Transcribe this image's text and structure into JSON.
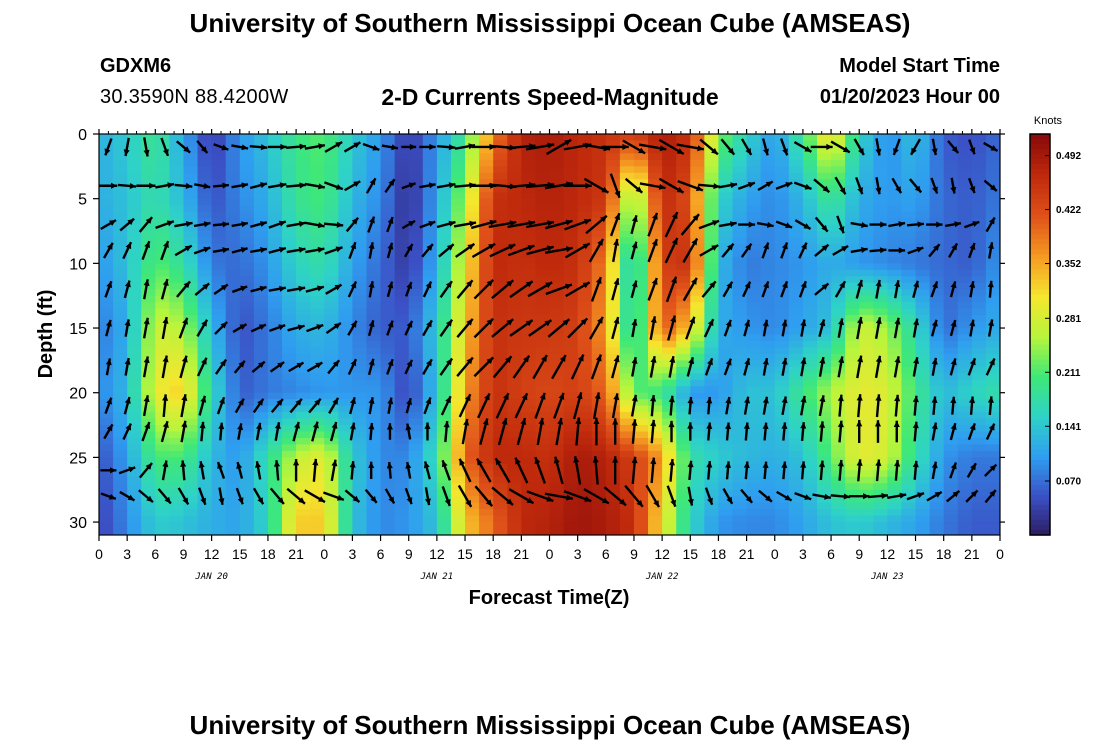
{
  "header": {
    "title": "University of Southern Mississippi Ocean Cube (AMSEAS)",
    "station": "GDXM6",
    "coords": "30.3590N  88.4200W",
    "subtitle": "2-D Currents Speed-Magnitude",
    "model_start_label": "Model Start Time",
    "model_start_value": "01/20/2023 Hour 00",
    "footer_title": "University of Southern Mississippi Ocean Cube (AMSEAS)"
  },
  "chart_data": {
    "type": "heatmap",
    "title": "2-D Currents Speed-Magnitude",
    "xlabel": "Forecast Time(Z)",
    "ylabel": "Depth (ft)",
    "x_tick_labels": [
      "0",
      "3",
      "6",
      "9",
      "12",
      "15",
      "18",
      "21",
      "0",
      "3",
      "6",
      "9",
      "12",
      "15",
      "18",
      "21",
      "0",
      "3",
      "6",
      "9",
      "12",
      "15",
      "18",
      "21",
      "0",
      "3",
      "6",
      "9",
      "12",
      "15",
      "18",
      "21",
      "0"
    ],
    "date_labels": [
      {
        "label": "JAN 20",
        "x_index": 4
      },
      {
        "label": "JAN 21",
        "x_index": 12
      },
      {
        "label": "JAN 22",
        "x_index": 20
      },
      {
        "label": "JAN 23",
        "x_index": 28
      }
    ],
    "y_ticks": [
      0,
      5,
      10,
      15,
      20,
      25,
      30
    ],
    "ylim": [
      0,
      31
    ],
    "xlim": [
      0,
      96
    ],
    "colorbar": {
      "label": "Knots",
      "ticks": [
        0.492,
        0.422,
        0.352,
        0.281,
        0.211,
        0.141,
        0.07
      ],
      "range": [
        0.0,
        0.52
      ]
    },
    "speed_grid_knots": {
      "depths_ft": [
        0,
        5,
        10,
        15,
        20,
        25,
        30
      ],
      "hours": [
        0,
        3,
        6,
        9,
        12,
        15,
        18,
        21,
        24,
        27,
        30,
        33,
        36,
        39,
        42,
        45,
        48,
        51,
        54,
        57,
        60,
        63,
        66,
        69,
        72,
        75,
        78,
        81,
        84,
        87,
        90,
        93,
        96
      ],
      "values": [
        [
          0.12,
          0.15,
          0.2,
          0.11,
          0.03,
          0.1,
          0.14,
          0.2,
          0.22,
          0.15,
          0.1,
          0.03,
          0.1,
          0.2,
          0.38,
          0.48,
          0.49,
          0.47,
          0.46,
          0.44,
          0.49,
          0.46,
          0.24,
          0.16,
          0.1,
          0.2,
          0.33,
          0.16,
          0.09,
          0.14,
          0.06,
          0.05,
          0.07
        ],
        [
          0.12,
          0.14,
          0.18,
          0.13,
          0.05,
          0.09,
          0.12,
          0.19,
          0.21,
          0.13,
          0.09,
          0.02,
          0.11,
          0.26,
          0.46,
          0.47,
          0.48,
          0.47,
          0.45,
          0.21,
          0.47,
          0.42,
          0.16,
          0.11,
          0.09,
          0.13,
          0.2,
          0.12,
          0.1,
          0.11,
          0.07,
          0.06,
          0.08
        ],
        [
          0.1,
          0.14,
          0.22,
          0.18,
          0.08,
          0.07,
          0.1,
          0.16,
          0.18,
          0.11,
          0.07,
          0.03,
          0.12,
          0.3,
          0.47,
          0.46,
          0.47,
          0.46,
          0.38,
          0.12,
          0.44,
          0.46,
          0.13,
          0.08,
          0.09,
          0.1,
          0.12,
          0.1,
          0.09,
          0.08,
          0.07,
          0.06,
          0.1
        ],
        [
          0.08,
          0.12,
          0.28,
          0.26,
          0.13,
          0.05,
          0.08,
          0.12,
          0.13,
          0.09,
          0.06,
          0.06,
          0.15,
          0.33,
          0.46,
          0.45,
          0.45,
          0.44,
          0.36,
          0.14,
          0.42,
          0.33,
          0.12,
          0.1,
          0.09,
          0.11,
          0.14,
          0.28,
          0.25,
          0.17,
          0.07,
          0.1,
          0.12
        ],
        [
          0.09,
          0.13,
          0.3,
          0.33,
          0.17,
          0.06,
          0.08,
          0.09,
          0.1,
          0.1,
          0.1,
          0.04,
          0.14,
          0.36,
          0.46,
          0.44,
          0.43,
          0.44,
          0.4,
          0.22,
          0.2,
          0.1,
          0.1,
          0.14,
          0.14,
          0.2,
          0.26,
          0.3,
          0.29,
          0.2,
          0.13,
          0.16,
          0.18
        ],
        [
          0.05,
          0.11,
          0.21,
          0.21,
          0.13,
          0.1,
          0.18,
          0.27,
          0.3,
          0.15,
          0.09,
          0.09,
          0.18,
          0.4,
          0.47,
          0.47,
          0.46,
          0.49,
          0.48,
          0.44,
          0.36,
          0.18,
          0.15,
          0.13,
          0.12,
          0.14,
          0.22,
          0.3,
          0.28,
          0.18,
          0.1,
          0.08,
          0.08
        ],
        [
          0.04,
          0.09,
          0.15,
          0.14,
          0.12,
          0.11,
          0.16,
          0.33,
          0.33,
          0.14,
          0.09,
          0.1,
          0.14,
          0.33,
          0.4,
          0.47,
          0.48,
          0.5,
          0.49,
          0.46,
          0.31,
          0.16,
          0.1,
          0.09,
          0.09,
          0.11,
          0.14,
          0.15,
          0.13,
          0.11,
          0.08,
          0.06,
          0.06
        ]
      ]
    },
    "vector_rows_depth_ft": [
      1,
      4,
      7,
      9,
      12,
      15,
      18,
      21,
      23,
      26,
      28
    ],
    "vector_columns_hour": [
      1,
      3,
      5,
      7,
      9,
      11,
      13,
      15,
      17,
      19,
      21,
      23,
      25,
      27,
      29,
      31,
      33,
      35,
      37,
      39,
      41,
      43,
      45,
      47,
      49,
      51,
      53,
      55,
      57,
      59,
      61,
      63,
      65,
      67,
      69,
      71,
      73,
      75,
      77,
      79,
      81,
      83,
      85,
      87,
      89,
      91,
      93,
      95
    ],
    "vector_directions_deg": [
      [
        200,
        190,
        170,
        160,
        130,
        140,
        110,
        100,
        95,
        90,
        85,
        80,
        60,
        60,
        110,
        100,
        90,
        90,
        95,
        80,
        90,
        95,
        85,
        80,
        60,
        80,
        100,
        90,
        120,
        100,
        120,
        100,
        130,
        140,
        150,
        165,
        160,
        120,
        90,
        120,
        150,
        170,
        200,
        210,
        170,
        140,
        160,
        120
      ],
      [
        90,
        95,
        90,
        80,
        95,
        100,
        85,
        80,
        75,
        80,
        85,
        100,
        110,
        60,
        30,
        35,
        70,
        80,
        80,
        85,
        90,
        95,
        85,
        85,
        80,
        90,
        120,
        160,
        130,
        100,
        120,
        110,
        95,
        80,
        70,
        60,
        70,
        110,
        130,
        150,
        160,
        170,
        150,
        140,
        160,
        170,
        160,
        130
      ],
      [
        60,
        50,
        40,
        70,
        80,
        80,
        85,
        80,
        75,
        70,
        80,
        100,
        95,
        40,
        20,
        20,
        60,
        70,
        75,
        80,
        75,
        80,
        80,
        80,
        75,
        70,
        50,
        20,
        15,
        20,
        25,
        40,
        70,
        80,
        90,
        100,
        110,
        120,
        140,
        160,
        100,
        90,
        80,
        85,
        90,
        80,
        70,
        30
      ],
      [
        30,
        25,
        20,
        20,
        60,
        70,
        80,
        75,
        80,
        75,
        80,
        80,
        70,
        20,
        10,
        15,
        30,
        40,
        50,
        55,
        60,
        65,
        70,
        75,
        80,
        60,
        30,
        10,
        15,
        20,
        25,
        30,
        60,
        40,
        35,
        20,
        20,
        25,
        50,
        60,
        80,
        85,
        90,
        70,
        40,
        30,
        20,
        10
      ],
      [
        20,
        15,
        10,
        15,
        40,
        50,
        55,
        70,
        75,
        80,
        80,
        75,
        60,
        25,
        10,
        15,
        20,
        25,
        35,
        40,
        45,
        50,
        55,
        60,
        70,
        60,
        20,
        15,
        15,
        20,
        20,
        30,
        40,
        30,
        25,
        20,
        20,
        20,
        50,
        30,
        15,
        10,
        10,
        15,
        20,
        15,
        10,
        5
      ],
      [
        15,
        10,
        10,
        10,
        20,
        30,
        45,
        60,
        65,
        70,
        75,
        70,
        55,
        30,
        15,
        20,
        25,
        30,
        35,
        40,
        45,
        50,
        55,
        55,
        50,
        45,
        30,
        15,
        10,
        10,
        15,
        20,
        25,
        20,
        15,
        10,
        10,
        10,
        15,
        10,
        10,
        10,
        10,
        10,
        15,
        15,
        10,
        10
      ],
      [
        10,
        10,
        10,
        10,
        15,
        25,
        35,
        40,
        50,
        55,
        60,
        60,
        40,
        25,
        15,
        20,
        25,
        30,
        35,
        40,
        45,
        40,
        35,
        30,
        30,
        25,
        20,
        15,
        10,
        10,
        10,
        15,
        20,
        20,
        15,
        10,
        10,
        10,
        10,
        10,
        10,
        10,
        10,
        10,
        10,
        15,
        20,
        25
      ],
      [
        20,
        15,
        10,
        5,
        10,
        15,
        20,
        30,
        35,
        40,
        40,
        40,
        30,
        15,
        10,
        10,
        15,
        20,
        25,
        25,
        25,
        25,
        25,
        20,
        20,
        15,
        10,
        10,
        10,
        5,
        5,
        5,
        5,
        10,
        10,
        10,
        10,
        10,
        10,
        5,
        5,
        5,
        5,
        5,
        5,
        5,
        5,
        5
      ],
      [
        30,
        25,
        20,
        15,
        10,
        5,
        5,
        10,
        10,
        10,
        15,
        15,
        15,
        10,
        5,
        0,
        350,
        0,
        5,
        10,
        15,
        15,
        15,
        10,
        10,
        5,
        0,
        0,
        5,
        5,
        0,
        0,
        5,
        5,
        5,
        5,
        5,
        5,
        5,
        5,
        0,
        0,
        0,
        5,
        10,
        15,
        20,
        25
      ],
      [
        90,
        70,
        40,
        10,
        355,
        350,
        340,
        345,
        350,
        355,
        0,
        5,
        10,
        5,
        0,
        355,
        350,
        345,
        340,
        335,
        330,
        330,
        335,
        340,
        345,
        350,
        355,
        0,
        5,
        5,
        5,
        5,
        5,
        5,
        5,
        5,
        5,
        5,
        5,
        5,
        5,
        5,
        5,
        5,
        10,
        20,
        30,
        45
      ],
      [
        110,
        120,
        130,
        140,
        150,
        160,
        170,
        160,
        150,
        140,
        130,
        120,
        110,
        130,
        140,
        150,
        160,
        170,
        160,
        150,
        140,
        130,
        120,
        110,
        100,
        110,
        120,
        130,
        140,
        150,
        160,
        170,
        160,
        150,
        140,
        130,
        120,
        110,
        100,
        95,
        90,
        85,
        80,
        70,
        60,
        50,
        45,
        40
      ]
    ]
  },
  "colors": {
    "colormap": [
      "#2a1b5a",
      "#3b4fc4",
      "#2f9df0",
      "#2ed2c8",
      "#3ee878",
      "#b7f53c",
      "#f5e62e",
      "#f59a22",
      "#e0521a",
      "#c02a0c",
      "#8b0a0a"
    ]
  }
}
